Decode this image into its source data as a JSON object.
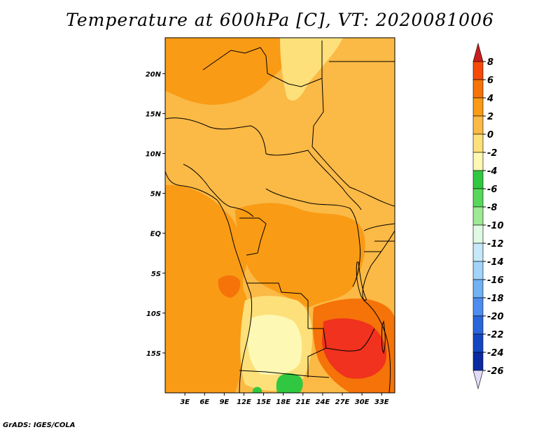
{
  "title": "Temperature at 600hPa [C], VT: 2020081006",
  "credit": "GrADS: IGES/COLA",
  "map": {
    "lat_labels": [
      "20N",
      "15N",
      "10N",
      "5N",
      "EQ",
      "5S",
      "10S",
      "15S"
    ],
    "lon_labels": [
      "3E",
      "6E",
      "9E",
      "12E",
      "15E",
      "18E",
      "21E",
      "24E",
      "27E",
      "30E",
      "33E"
    ],
    "lat_range": [
      -20,
      24.5
    ],
    "lon_range": [
      0,
      35
    ]
  },
  "colorbar": {
    "levels": [
      "8",
      "6",
      "4",
      "2",
      "0",
      "-2",
      "-4",
      "-6",
      "-8",
      "-10",
      "-12",
      "-14",
      "-16",
      "-18",
      "-20",
      "-22",
      "-24",
      "-26"
    ],
    "colors": [
      "#f0321e",
      "#f54a0a",
      "#f57308",
      "#f99b15",
      "#fbb945",
      "#fde07a",
      "#fdf8b4",
      "#31c841",
      "#56d95a",
      "#9ee993",
      "#e0f9e3",
      "#c6e8f8",
      "#a1d4f8",
      "#70b2f3",
      "#4d8df0",
      "#2a65d9",
      "#1446c3",
      "#0a2aa2"
    ],
    "top_arrow_color": "#c81e1e",
    "bottom_arrow_color": "#e0dcf8"
  },
  "palette": {
    "hot": "#f0321e",
    "warm": "#f57308",
    "orange": "#f99b15",
    "light_orange": "#fbb945",
    "yellow": "#fde07a",
    "pale": "#fdf8b4",
    "green": "#31c841"
  }
}
